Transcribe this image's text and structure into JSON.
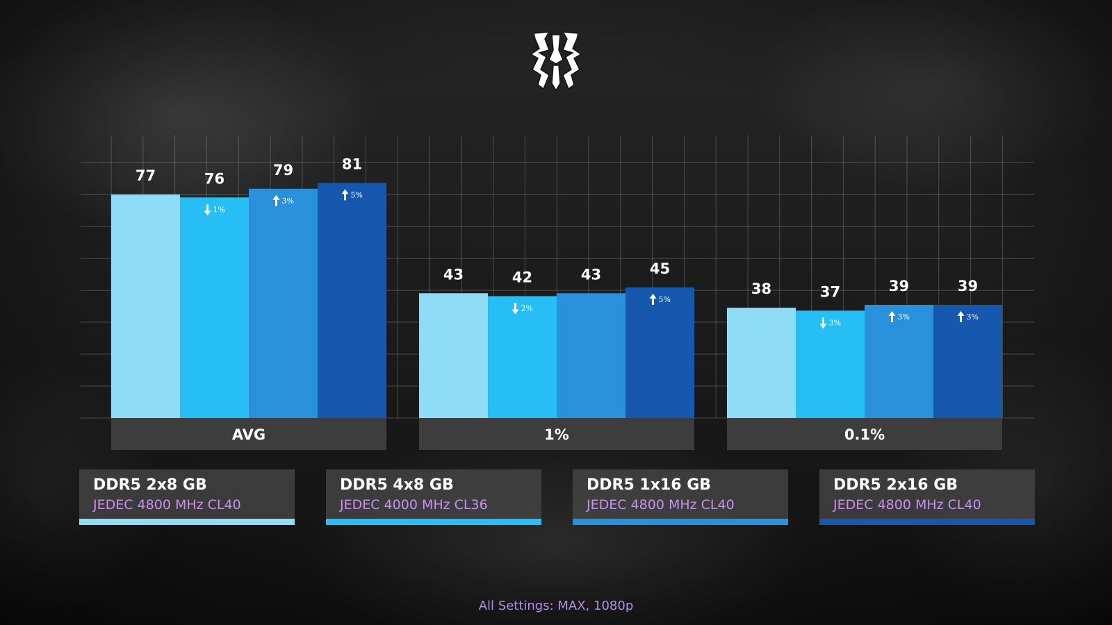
{
  "chart_data": {
    "type": "bar",
    "categories": [
      "AVG",
      "1%",
      "0.1%"
    ],
    "series": [
      {
        "name": "DDR5 2x8 GB",
        "detail": "JEDEC 4800 MHz CL40",
        "color": "#8fdcf7",
        "values": [
          77,
          43,
          38
        ],
        "changes": [
          null,
          null,
          null
        ]
      },
      {
        "name": "DDR5 4x8 GB",
        "detail": "JEDEC 4000 MHz CL36",
        "color": "#27bef5",
        "values": [
          76,
          42,
          37
        ],
        "changes": [
          {
            "dir": "down",
            "text": "1%"
          },
          {
            "dir": "down",
            "text": "2%"
          },
          {
            "dir": "down",
            "text": "3%"
          }
        ]
      },
      {
        "name": "DDR5 1x16 GB",
        "detail": "JEDEC 4800 MHz CL40",
        "color": "#2990dc",
        "values": [
          79,
          43,
          39
        ],
        "changes": [
          {
            "dir": "up",
            "text": "3%"
          },
          null,
          {
            "dir": "up",
            "text": "3%"
          }
        ]
      },
      {
        "name": "DDR5 2x16 GB",
        "detail": "JEDEC 4800 MHz CL40",
        "color": "#1658ad",
        "values": [
          81,
          45,
          39
        ],
        "changes": [
          {
            "dir": "up",
            "text": "5%"
          },
          {
            "dir": "up",
            "text": "5%"
          },
          {
            "dir": "up",
            "text": "3%"
          }
        ]
      }
    ],
    "ylim": [
      0,
      100
    ],
    "grid": true,
    "legend_position": "bottom"
  },
  "logo": {
    "name": "game-logo"
  },
  "footnote": "All Settings: MAX, 1080p",
  "colors": {
    "category_label_bg": "#3d3d3d",
    "legend_box_bg": "#464646",
    "legend_detail_text": "#c98ef0",
    "footnote_text": "#b98ae8"
  }
}
